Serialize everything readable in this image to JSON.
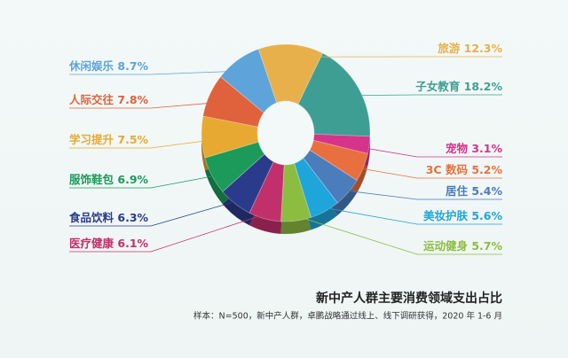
{
  "chart_data": {
    "type": "pie",
    "title": "新中产人群主要消费领域支出占比",
    "subtitle": "样本：N=500，新中产人群，卓鹏战略通过线上、线下调研获得，2020 年 1-6 月",
    "categories": [
      "旅游",
      "子女教育",
      "宠物",
      "3C 数码",
      "居住",
      "美妆护肤",
      "运动健身",
      "医疗健康",
      "食品饮料",
      "服饰鞋包",
      "学习提升",
      "人际交往",
      "休闲娱乐"
    ],
    "values": [
      12.3,
      18.2,
      3.1,
      5.2,
      5.4,
      5.6,
      5.7,
      6.1,
      6.3,
      6.9,
      7.5,
      7.8,
      8.7
    ],
    "value_labels": [
      "12.3%",
      "18.2%",
      "3.1%",
      "5.2%",
      "5.4%",
      "5.6%",
      "5.7%",
      "6.1%",
      "6.3%",
      "6.9%",
      "7.5%",
      "7.8%",
      "8.7%"
    ],
    "colors": [
      "#e8b04a",
      "#3f9e93",
      "#d6338a",
      "#e8703e",
      "#4b7cbc",
      "#1ea6da",
      "#8dbd40",
      "#c2306c",
      "#2b3b8c",
      "#1c9a5a",
      "#e8a932",
      "#e0623c",
      "#5ea3da"
    ]
  }
}
